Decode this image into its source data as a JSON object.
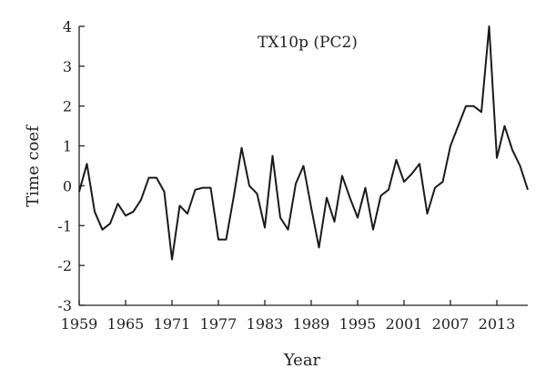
{
  "chart_data": {
    "type": "line",
    "title": "TX10p (PC2)",
    "xlabel": "Year",
    "ylabel": "Time coef",
    "xlim": [
      1959,
      2017
    ],
    "ylim": [
      -3,
      4
    ],
    "grid": false,
    "x_ticks": [
      "1959",
      "1965",
      "1971",
      "1977",
      "1983",
      "1989",
      "1995",
      "2001",
      "2007",
      "2013"
    ],
    "y_ticks": [
      "4",
      "3",
      "2",
      "1",
      "0",
      "-1",
      "-2",
      "-3"
    ],
    "colors": {
      "line": "#1a1a1a",
      "axis": "#222222"
    },
    "series": [
      {
        "x": [
          1959,
          1960,
          1961,
          1962,
          1963,
          1964,
          1965,
          1966,
          1967,
          1968,
          1969,
          1970,
          1971,
          1972,
          1973,
          1974,
          1975,
          1976,
          1977,
          1978,
          1979,
          1980,
          1981,
          1982,
          1983,
          1984,
          1985,
          1986,
          1987,
          1988,
          1989,
          1990,
          1991,
          1992,
          1993,
          1994,
          1995,
          1996,
          1997,
          1998,
          1999,
          2000,
          2001,
          2002,
          2003,
          2004,
          2005,
          2006,
          2007,
          2008,
          2009,
          2010,
          2011,
          2012,
          2013,
          2014,
          2015,
          2016,
          2017
        ],
        "values": [
          -0.15,
          0.55,
          -0.65,
          -1.1,
          -0.95,
          -0.45,
          -0.75,
          -0.65,
          -0.35,
          0.2,
          0.2,
          -0.15,
          -1.85,
          -0.5,
          -0.7,
          -0.1,
          -0.05,
          -0.05,
          -1.35,
          -1.35,
          -0.25,
          0.95,
          0.0,
          -0.2,
          -1.05,
          0.75,
          -0.8,
          -1.1,
          0.05,
          0.5,
          -0.55,
          -1.55,
          -0.3,
          -0.9,
          0.25,
          -0.3,
          -0.8,
          -0.05,
          -1.1,
          -0.25,
          -0.1,
          0.65,
          0.1,
          0.3,
          0.55,
          -0.7,
          -0.05,
          0.1,
          1.0,
          1.5,
          2.0,
          2.0,
          1.85,
          4.0,
          0.7,
          1.5,
          0.9,
          0.5,
          -0.1
        ]
      }
    ]
  }
}
